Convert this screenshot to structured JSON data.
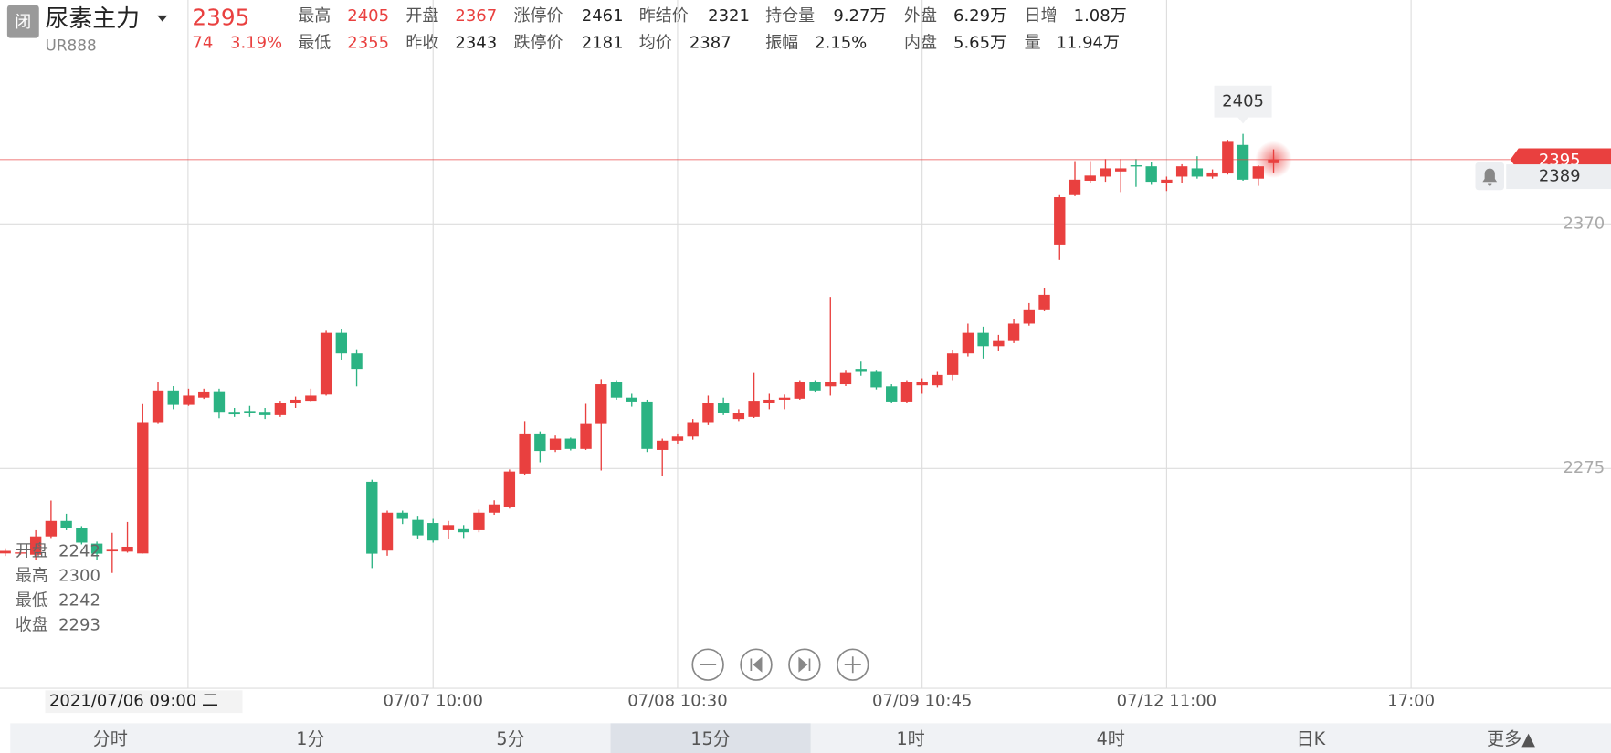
{
  "header": {
    "status": "闭",
    "name": "尿素主力",
    "code": "UR888",
    "price": "2395",
    "change": "74",
    "change_pct": "3.19%",
    "rows": [
      [
        {
          "label": "最高",
          "value": "2405",
          "color": "#e9403f"
        },
        {
          "label": "开盘",
          "value": "2367",
          "color": "#e9403f"
        },
        {
          "label": "涨停价",
          "value": "2461"
        },
        {
          "label": "昨结价",
          "value": "2321"
        },
        {
          "label": "持仓量",
          "value": "9.27万"
        },
        {
          "label": "外盘",
          "value": "6.29万"
        },
        {
          "label": "日增",
          "value": "1.08万"
        }
      ],
      [
        {
          "label": "最低",
          "value": "2355",
          "color": "#e9403f"
        },
        {
          "label": "昨收",
          "value": "2343"
        },
        {
          "label": "跌停价",
          "value": "2181"
        },
        {
          "label": "均价",
          "value": "2387"
        },
        {
          "label": "振幅",
          "value": "2.15%"
        },
        {
          "label": "内盘",
          "value": "5.65万"
        },
        {
          "label": "量",
          "value": "11.94万"
        }
      ]
    ]
  },
  "chart_data": {
    "type": "candlestick",
    "up_color": "#e9403f",
    "down_color": "#2bb383",
    "open": [
      2242,
      2242,
      2241.5,
      2248.6,
      2254.6,
      2251.8,
      2245.8,
      2242.8,
      2242.7,
      2242,
      2293,
      2305.3,
      2299.7,
      2302.5,
      2305,
      2297,
      2297.3,
      2297,
      2295.7,
      2300.5,
      2301.3,
      2303.7,
      2327.7,
      2319.7,
      2269.8,
      2243.1,
      2257.8,
      2255,
      2253.8,
      2251,
      2251.4,
      2251,
      2257.8,
      2260.2,
      2273,
      2288.6,
      2282.2,
      2286.6,
      2282.6,
      2292.6,
      2308.5,
      2302.5,
      2301,
      2282.2,
      2285.8,
      2287.4,
      2293,
      2300.5,
      2294.2,
      2295,
      2300.5,
      2301.7,
      2302.1,
      2308.5,
      2306.9,
      2307.7,
      2313.7,
      2312.5,
      2306.9,
      2301,
      2307.3,
      2307.3,
      2311.3,
      2319.7,
      2327.7,
      2322.5,
      2324.5,
      2331.3,
      2336.5,
      2362,
      2381.2,
      2386.8,
      2388.4,
      2390.4,
      2392.8,
      2392.4,
      2386,
      2388.4,
      2391.6,
      2388.4,
      2389.6,
      2400.7,
      2387.6,
      2393.6
    ],
    "high": [
      2244,
      2243,
      2251,
      2262.5,
      2257.4,
      2252.6,
      2246.6,
      2250,
      2254.2,
      2300,
      2308.5,
      2307,
      2306,
      2306,
      2306,
      2298.5,
      2299.3,
      2298.5,
      2301.3,
      2302.9,
      2306,
      2328.5,
      2329.3,
      2321.3,
      2270.6,
      2258.6,
      2258.6,
      2256.6,
      2255.4,
      2254.6,
      2253,
      2259,
      2262.6,
      2274.6,
      2293.4,
      2289.4,
      2287.8,
      2287,
      2300.1,
      2309.7,
      2309.3,
      2304,
      2301.7,
      2286.6,
      2288.6,
      2294.2,
      2303.3,
      2302.5,
      2298,
      2312.1,
      2304,
      2303.7,
      2309.3,
      2309.3,
      2341.7,
      2313.3,
      2316.5,
      2313.3,
      2307.7,
      2309.3,
      2310,
      2312.5,
      2320.9,
      2331.3,
      2330.1,
      2326.9,
      2332.9,
      2339.3,
      2345.3,
      2381.2,
      2394.4,
      2394.4,
      2395.2,
      2395.2,
      2395.2,
      2394,
      2388.4,
      2393.2,
      2396.3,
      2391.2,
      2402.7,
      2405,
      2392.8,
      2399
    ],
    "low": [
      2241,
      2241.5,
      2239.5,
      2248,
      2251,
      2245.5,
      2239.5,
      2234.4,
      2242.3,
      2242,
      2292.6,
      2298,
      2299.3,
      2302,
      2294.5,
      2295,
      2295,
      2294.2,
      2295,
      2298.5,
      2301,
      2303.3,
      2317.3,
      2306.9,
      2236.3,
      2241.1,
      2253.4,
      2247.8,
      2246.2,
      2247.8,
      2248,
      2250.2,
      2257,
      2259.4,
      2272.6,
      2277.4,
      2281.4,
      2282,
      2282.2,
      2274.2,
      2301.7,
      2299,
      2281.4,
      2272.2,
      2284.6,
      2286.2,
      2291.8,
      2295.7,
      2293.4,
      2294.6,
      2298,
      2298,
      2301.7,
      2304.5,
      2303.3,
      2307,
      2311,
      2305.7,
      2300.5,
      2300.5,
      2304,
      2306.5,
      2309.3,
      2318.5,
      2317.7,
      2320.5,
      2323.7,
      2330.5,
      2336.1,
      2356,
      2380.8,
      2386,
      2386.4,
      2382.4,
      2384.4,
      2385.2,
      2382.8,
      2386,
      2387.6,
      2387.6,
      2389.2,
      2386.8,
      2384.8,
      2390
    ],
    "close": [
      2243,
      2242.4,
      2248.6,
      2254.6,
      2251.8,
      2246.2,
      2241.9,
      2243.4,
      2244.6,
      2293,
      2305.3,
      2299.7,
      2303.3,
      2304.9,
      2297,
      2296,
      2296.5,
      2295.7,
      2300.5,
      2301.7,
      2303.3,
      2327.7,
      2319.7,
      2313.7,
      2241.9,
      2257.8,
      2255.4,
      2249,
      2247,
      2253,
      2250.2,
      2257.8,
      2261,
      2273.8,
      2288.6,
      2281.8,
      2286.6,
      2282.6,
      2292.6,
      2307.7,
      2302.5,
      2301,
      2282.6,
      2285.8,
      2287.4,
      2293,
      2300.5,
      2296.5,
      2296.5,
      2301.3,
      2301.7,
      2302.5,
      2308.5,
      2305.3,
      2308.5,
      2312.1,
      2312.5,
      2306.5,
      2301,
      2308.5,
      2308.5,
      2311.3,
      2319.7,
      2327.7,
      2322.5,
      2324.5,
      2331.3,
      2336.5,
      2342.5,
      2380.4,
      2387.2,
      2388.8,
      2391.6,
      2391.6,
      2392.4,
      2386.4,
      2387.2,
      2392.4,
      2388.4,
      2390,
      2401.9,
      2387.2,
      2392.4,
      2395
    ],
    "xlim": [
      -0.34,
      105.08
    ],
    "ylim": [
      2189.6,
      2457
    ],
    "yticks": [
      2275,
      2370
    ],
    "xticks": [
      {
        "value": 28,
        "label": "07/07 10:00"
      },
      {
        "value": 44,
        "label": "07/08 10:30"
      },
      {
        "value": 60,
        "label": "07/09 10:45"
      },
      {
        "value": 76,
        "label": "07/12 11:00"
      },
      {
        "value": 92,
        "label": "17:00"
      }
    ],
    "grid": true,
    "cursor_label": "2021/07/06 09:00 二",
    "cursor_index": 9,
    "high_marker_index": 81,
    "ohlc_labels": [
      "开盘",
      "最高",
      "最低",
      "收盘"
    ],
    "alert_price": "2389"
  },
  "tabs": [
    "分时",
    "1分",
    "5分",
    "15分",
    "1时",
    "4时",
    "日K",
    "更多▲"
  ],
  "selected_tab": 3
}
